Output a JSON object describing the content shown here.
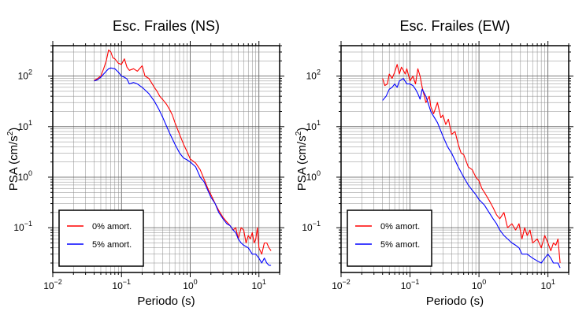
{
  "chart_data": [
    {
      "type": "line",
      "title": "Esc. Frailes (NS)",
      "xlabel": "Periodo (s)",
      "ylabel_base": "PSA (cm/s",
      "ylabel_sup": "2",
      "ylabel_end": ")",
      "xscale": "log",
      "yscale": "log",
      "xlim": [
        0.01,
        20
      ],
      "ylim": [
        0.013,
        400
      ],
      "grid": true,
      "legend_position": "bottom-left",
      "xticks": [
        {
          "value": 0.01,
          "base": "10",
          "exp": "−2"
        },
        {
          "value": 0.1,
          "base": "10",
          "exp": "−1"
        },
        {
          "value": 1,
          "base": "10",
          "exp": "0"
        },
        {
          "value": 10,
          "base": "10",
          "exp": "1"
        }
      ],
      "yticks": [
        {
          "value": 0.1,
          "base": "10",
          "exp": "−1"
        },
        {
          "value": 1,
          "base": "10",
          "exp": "0"
        },
        {
          "value": 10,
          "base": "10",
          "exp": "1"
        },
        {
          "value": 100,
          "base": "10",
          "exp": "2"
        }
      ],
      "series": [
        {
          "name": "0% amort.",
          "color": "#ff0000",
          "x": [
            0.04,
            0.045,
            0.05,
            0.055,
            0.06,
            0.065,
            0.07,
            0.075,
            0.08,
            0.09,
            0.1,
            0.11,
            0.12,
            0.13,
            0.15,
            0.17,
            0.2,
            0.22,
            0.25,
            0.28,
            0.3,
            0.33,
            0.36,
            0.4,
            0.45,
            0.5,
            0.55,
            0.6,
            0.7,
            0.8,
            0.9,
            1.0,
            1.2,
            1.4,
            1.6,
            1.8,
            2.0,
            2.3,
            2.6,
            3.0,
            3.4,
            3.8,
            4.2,
            4.6,
            5.0,
            5.5,
            6.0,
            6.5,
            7.0,
            7.5,
            8.0,
            8.5,
            9.0,
            9.5,
            10,
            11,
            12,
            13,
            14,
            15
          ],
          "y": [
            82,
            90,
            100,
            140,
            200,
            330,
            300,
            230,
            220,
            180,
            170,
            220,
            150,
            130,
            140,
            125,
            160,
            100,
            90,
            70,
            60,
            50,
            40,
            34,
            28,
            22,
            17,
            12,
            7.0,
            4.5,
            3.2,
            2.3,
            1.9,
            1.4,
            0.9,
            0.6,
            0.45,
            0.3,
            0.22,
            0.16,
            0.13,
            0.11,
            0.09,
            0.1,
            0.06,
            0.1,
            0.09,
            0.05,
            0.07,
            0.06,
            0.08,
            0.05,
            0.06,
            0.1,
            0.04,
            0.03,
            0.05,
            0.05,
            0.04,
            0.035
          ]
        },
        {
          "name": "5% amort.",
          "color": "#0000ff",
          "x": [
            0.04,
            0.045,
            0.05,
            0.055,
            0.06,
            0.065,
            0.07,
            0.08,
            0.09,
            0.1,
            0.11,
            0.12,
            0.13,
            0.15,
            0.17,
            0.2,
            0.25,
            0.3,
            0.35,
            0.4,
            0.5,
            0.6,
            0.7,
            0.8,
            0.9,
            1.0,
            1.2,
            1.4,
            1.6,
            1.8,
            2.0,
            2.3,
            2.6,
            3.0,
            3.4,
            3.8,
            4.2,
            4.6,
            5.0,
            5.5,
            6.0,
            7.0,
            8.0,
            9.0,
            10,
            11,
            12,
            13,
            14,
            15
          ],
          "y": [
            80,
            85,
            95,
            110,
            125,
            140,
            145,
            140,
            120,
            100,
            95,
            88,
            70,
            75,
            70,
            60,
            45,
            32,
            22,
            15,
            7.5,
            4.5,
            3.0,
            2.4,
            2.2,
            2.0,
            1.6,
            1.0,
            0.8,
            0.55,
            0.4,
            0.3,
            0.2,
            0.15,
            0.12,
            0.11,
            0.09,
            0.08,
            0.06,
            0.05,
            0.045,
            0.04,
            0.03,
            0.03,
            0.025,
            0.02,
            0.025,
            0.02,
            0.018,
            0.018
          ]
        }
      ]
    },
    {
      "type": "line",
      "title": "Esc. Frailes (EW)",
      "xlabel": "Periodo (s)",
      "ylabel_base": "PSA (cm/s",
      "ylabel_sup": "2",
      "ylabel_end": ")",
      "xscale": "log",
      "yscale": "log",
      "xlim": [
        0.01,
        20
      ],
      "ylim": [
        0.013,
        400
      ],
      "grid": true,
      "legend_position": "bottom-left",
      "xticks": [
        {
          "value": 0.01,
          "base": "10",
          "exp": "−2"
        },
        {
          "value": 0.1,
          "base": "10",
          "exp": "−1"
        },
        {
          "value": 1,
          "base": "10",
          "exp": "0"
        },
        {
          "value": 10,
          "base": "10",
          "exp": "1"
        }
      ],
      "yticks": [
        {
          "value": 0.1,
          "base": "10",
          "exp": "−1"
        },
        {
          "value": 1,
          "base": "10",
          "exp": "0"
        },
        {
          "value": 10,
          "base": "10",
          "exp": "1"
        },
        {
          "value": 100,
          "base": "10",
          "exp": "2"
        }
      ],
      "series": [
        {
          "name": "0% amort.",
          "color": "#ff0000",
          "x": [
            0.04,
            0.043,
            0.047,
            0.05,
            0.055,
            0.06,
            0.065,
            0.07,
            0.075,
            0.08,
            0.085,
            0.09,
            0.1,
            0.11,
            0.12,
            0.13,
            0.14,
            0.15,
            0.17,
            0.19,
            0.2,
            0.22,
            0.25,
            0.28,
            0.3,
            0.33,
            0.36,
            0.4,
            0.45,
            0.5,
            0.55,
            0.6,
            0.7,
            0.8,
            0.9,
            1.0,
            1.1,
            1.2,
            1.4,
            1.6,
            1.8,
            2.0,
            2.3,
            2.6,
            3.0,
            3.4,
            3.8,
            4.2,
            4.6,
            5.0,
            5.5,
            6.0,
            7.0,
            8.0,
            9.0,
            10,
            11,
            12,
            13,
            14,
            15
          ],
          "y": [
            90,
            65,
            70,
            110,
            90,
            120,
            170,
            110,
            150,
            130,
            110,
            140,
            80,
            100,
            70,
            140,
            100,
            60,
            30,
            40,
            25,
            18,
            30,
            15,
            17,
            11,
            14,
            7,
            8,
            4.5,
            3,
            2.8,
            1.6,
            1.4,
            1.0,
            0.85,
            0.6,
            0.5,
            0.35,
            0.25,
            0.18,
            0.15,
            0.2,
            0.1,
            0.12,
            0.09,
            0.12,
            0.06,
            0.1,
            0.07,
            0.09,
            0.05,
            0.06,
            0.04,
            0.07,
            0.05,
            0.035,
            0.05,
            0.045,
            0.06,
            0.02
          ]
        },
        {
          "name": "5% amort.",
          "color": "#0000ff",
          "x": [
            0.04,
            0.045,
            0.05,
            0.055,
            0.06,
            0.065,
            0.07,
            0.08,
            0.09,
            0.1,
            0.11,
            0.12,
            0.13,
            0.14,
            0.15,
            0.17,
            0.2,
            0.22,
            0.25,
            0.3,
            0.35,
            0.4,
            0.5,
            0.6,
            0.7,
            0.8,
            0.9,
            1.0,
            1.2,
            1.4,
            1.6,
            1.8,
            2.0,
            2.3,
            2.6,
            3.0,
            3.4,
            3.8,
            4.2,
            5.0,
            6.0,
            7.0,
            8.0,
            9.0,
            10,
            11,
            12,
            13,
            14,
            15
          ],
          "y": [
            33,
            40,
            55,
            60,
            70,
            60,
            80,
            90,
            70,
            70,
            65,
            55,
            45,
            35,
            55,
            40,
            20,
            16,
            12,
            6.5,
            4.0,
            3.0,
            1.6,
            1.0,
            0.7,
            0.55,
            0.45,
            0.36,
            0.28,
            0.2,
            0.15,
            0.12,
            0.09,
            0.07,
            0.06,
            0.05,
            0.045,
            0.04,
            0.03,
            0.03,
            0.025,
            0.022,
            0.02,
            0.025,
            0.03,
            0.025,
            0.02,
            0.02,
            0.02,
            0.016
          ]
        }
      ]
    }
  ]
}
